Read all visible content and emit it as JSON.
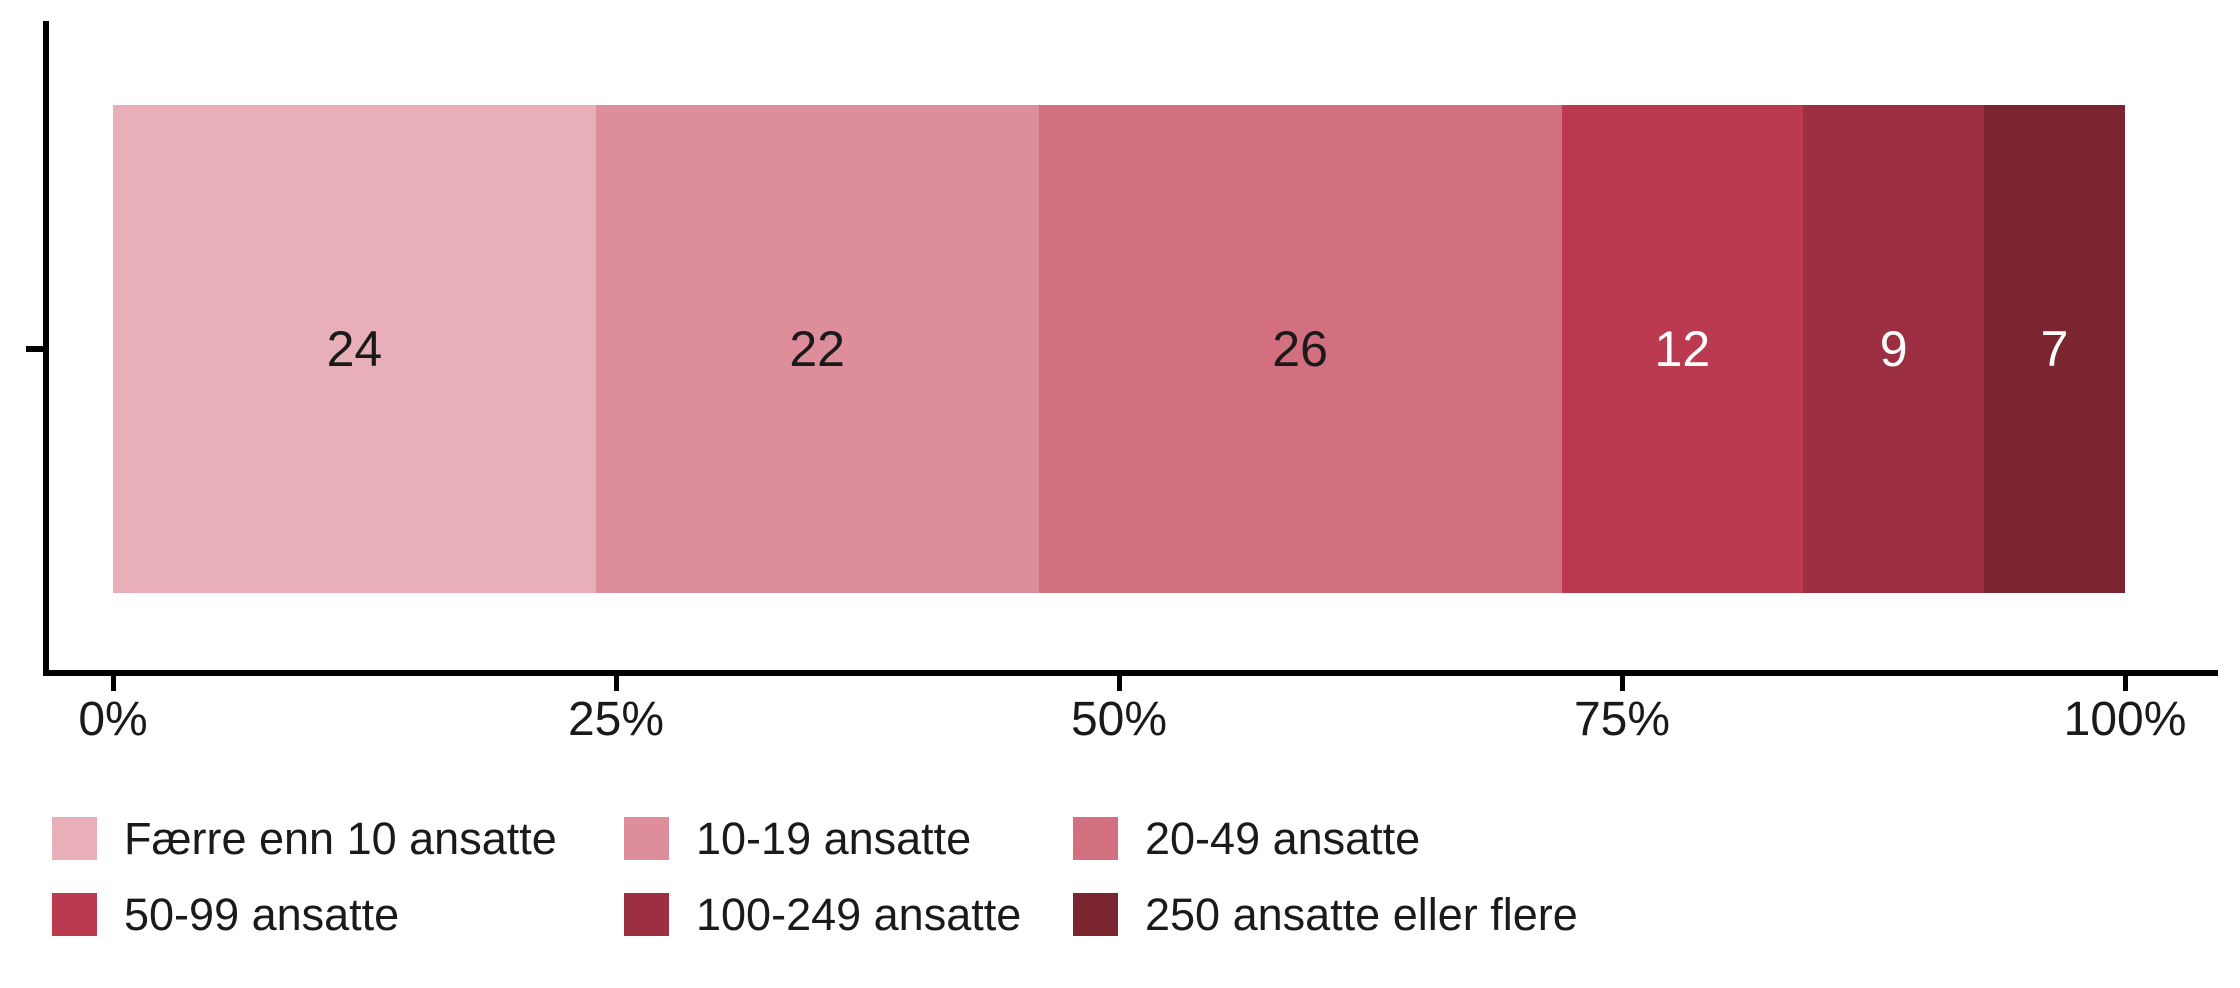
{
  "chart_data": {
    "type": "bar",
    "subtype": "horizontal-stacked-100-percent",
    "title": "",
    "orientation": "horizontal",
    "categories": [
      "Færre enn 10 ansatte",
      "10-19 ansatte",
      "20-49 ansatte",
      "50-99 ansatte",
      "100-249 ansatte",
      "250 ansatte eller flere"
    ],
    "values": [
      24,
      22,
      26,
      12,
      9,
      7
    ],
    "value_labels": [
      "24",
      "22",
      "26",
      "12",
      "9",
      "7"
    ],
    "colors": [
      "#E8AFB9",
      "#DE8E9A",
      "#D3707F",
      "#BC3A50",
      "#9D2F42",
      "#7B2531"
    ],
    "value_label_colors": [
      "#1A1A1A",
      "#1A1A1A",
      "#1A1A1A",
      "#FFFFFF",
      "#FFFFFF",
      "#FFFFFF"
    ],
    "xlabel": "",
    "ylabel": "",
    "x_axis": {
      "range": [
        0,
        100
      ],
      "tick_values": [
        0,
        25,
        50,
        75,
        100
      ],
      "tick_labels": [
        "0%",
        "25%",
        "50%",
        "75%",
        "100%"
      ]
    },
    "grid": false,
    "axis_color": "#000000",
    "legend": {
      "position": "bottom-left",
      "rows": 2,
      "columns": 3,
      "entries": [
        "Færre enn 10 ansatte",
        "10-19 ansatte",
        "20-49 ansatte",
        "50-99 ansatte",
        "100-249 ansatte",
        "250 ansatte eller flere"
      ]
    }
  }
}
